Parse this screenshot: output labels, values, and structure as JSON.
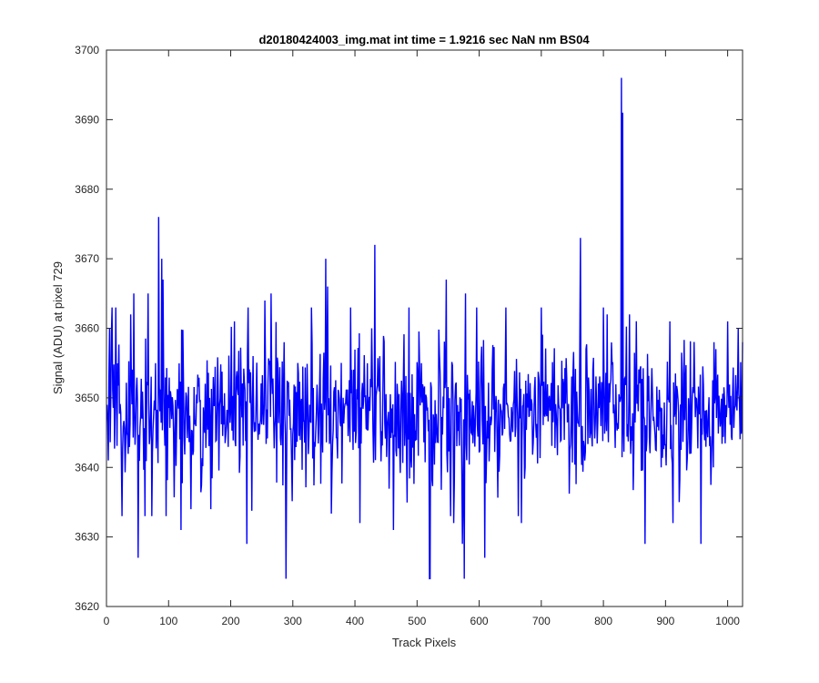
{
  "chart_data": {
    "type": "line",
    "title": "d20180424003_img.mat int time = 1.9216 sec  NaN nm BS04",
    "xlabel": "Track Pixels",
    "ylabel": "Signal (ADU) at pixel 729",
    "xlim": [
      0,
      1024
    ],
    "ylim": [
      3620,
      3700
    ],
    "xticks": [
      "0",
      "100",
      "200",
      "300",
      "400",
      "500",
      "600",
      "700",
      "800",
      "900",
      "1000"
    ],
    "yticks": [
      "3620",
      "3630",
      "3640",
      "3650",
      "3660",
      "3670",
      "3680",
      "3690",
      "3700"
    ],
    "grid": false,
    "box": true,
    "line_color": "#0000ff",
    "series": [
      {
        "x_start": 1,
        "x_step": 1,
        "baseline": 3648,
        "noise_amplitude": 5,
        "values_sampled": [
          {
            "x": 1,
            "y": 3649
          },
          {
            "x": 3,
            "y": 3641
          },
          {
            "x": 5,
            "y": 3660
          },
          {
            "x": 9,
            "y": 3663
          },
          {
            "x": 15,
            "y": 3663
          },
          {
            "x": 25,
            "y": 3633
          },
          {
            "x": 39,
            "y": 3662
          },
          {
            "x": 44,
            "y": 3665
          },
          {
            "x": 51,
            "y": 3627
          },
          {
            "x": 67,
            "y": 3665
          },
          {
            "x": 73,
            "y": 3633
          },
          {
            "x": 84,
            "y": 3676
          },
          {
            "x": 89,
            "y": 3670
          },
          {
            "x": 91,
            "y": 3667
          },
          {
            "x": 96,
            "y": 3633
          },
          {
            "x": 120,
            "y": 3631
          },
          {
            "x": 136,
            "y": 3634
          },
          {
            "x": 168,
            "y": 3634
          },
          {
            "x": 206,
            "y": 3661
          },
          {
            "x": 226,
            "y": 3629
          },
          {
            "x": 255,
            "y": 3664
          },
          {
            "x": 265,
            "y": 3665
          },
          {
            "x": 286,
            "y": 3658
          },
          {
            "x": 289,
            "y": 3624
          },
          {
            "x": 330,
            "y": 3663
          },
          {
            "x": 353,
            "y": 3670
          },
          {
            "x": 356,
            "y": 3666
          },
          {
            "x": 393,
            "y": 3663
          },
          {
            "x": 408,
            "y": 3632
          },
          {
            "x": 427,
            "y": 3660
          },
          {
            "x": 432,
            "y": 3672
          },
          {
            "x": 462,
            "y": 3631
          },
          {
            "x": 487,
            "y": 3663
          },
          {
            "x": 520,
            "y": 3624
          },
          {
            "x": 521,
            "y": 3624
          },
          {
            "x": 547,
            "y": 3667
          },
          {
            "x": 559,
            "y": 3632
          },
          {
            "x": 573,
            "y": 3629
          },
          {
            "x": 576,
            "y": 3624
          },
          {
            "x": 578,
            "y": 3665
          },
          {
            "x": 596,
            "y": 3663
          },
          {
            "x": 609,
            "y": 3627
          },
          {
            "x": 643,
            "y": 3663
          },
          {
            "x": 668,
            "y": 3632
          },
          {
            "x": 700,
            "y": 3663
          },
          {
            "x": 763,
            "y": 3673
          },
          {
            "x": 806,
            "y": 3662
          },
          {
            "x": 829,
            "y": 3696
          },
          {
            "x": 831,
            "y": 3691
          },
          {
            "x": 842,
            "y": 3662
          },
          {
            "x": 867,
            "y": 3629
          },
          {
            "x": 907,
            "y": 3661
          },
          {
            "x": 912,
            "y": 3632
          },
          {
            "x": 957,
            "y": 3629
          },
          {
            "x": 978,
            "y": 3658
          },
          {
            "x": 1000,
            "y": 3661
          },
          {
            "x": 1017,
            "y": 3660
          },
          {
            "x": 1024,
            "y": 3658
          }
        ]
      }
    ]
  }
}
